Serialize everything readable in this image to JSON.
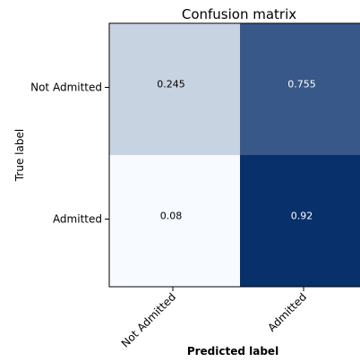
{
  "chart_data": {
    "type": "heatmap",
    "title": "Confusion matrix",
    "xlabel": "Predicted label",
    "ylabel": "True label",
    "x_categories": [
      "Not Admitted",
      "Admitted"
    ],
    "y_categories": [
      "Not Admitted",
      "Admitted"
    ],
    "values": [
      [
        0.245,
        0.755
      ],
      [
        0.08,
        0.92
      ]
    ],
    "value_labels": [
      [
        "0.245",
        "0.755"
      ],
      [
        "0.08",
        "0.92"
      ]
    ],
    "colormap": "Blues",
    "color_range": [
      0.08,
      0.92
    ],
    "grid": false
  }
}
